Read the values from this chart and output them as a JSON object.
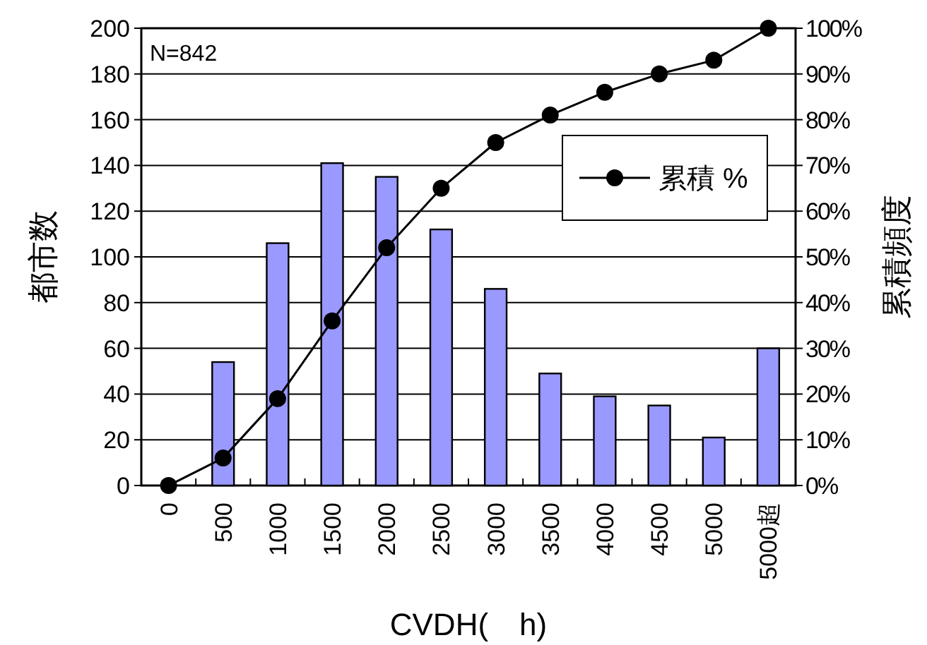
{
  "chart_data": {
    "type": "bar",
    "xlabel": "CVDH(　h)",
    "ylabel": "都市数",
    "y2label": "累積頻度",
    "annotations": [
      "N=842"
    ],
    "categories": [
      "0",
      "500",
      "1000",
      "1500",
      "2000",
      "2500",
      "3000",
      "3500",
      "4000",
      "4500",
      "5000",
      "5000超"
    ],
    "series": [
      {
        "color": "#9999ff",
        "values": [
          0,
          54,
          106,
          141,
          135,
          112,
          86,
          49,
          39,
          35,
          21,
          60
        ]
      },
      {
        "type": "line",
        "name": "累積 %",
        "color": "#000000",
        "axis": "y2",
        "marker": "circle",
        "values": [
          0,
          6,
          19,
          36,
          52,
          65,
          75,
          81,
          86,
          90,
          93,
          100
        ]
      }
    ],
    "ylim": [
      0,
      200
    ],
    "yticks": [
      0,
      20,
      40,
      60,
      80,
      100,
      120,
      140,
      160,
      180,
      200
    ],
    "y2lim": [
      0,
      100
    ],
    "y2ticks": [
      {
        "value": 0,
        "label": "0%"
      },
      {
        "value": 10,
        "label": "10%"
      },
      {
        "value": 20,
        "label": "20%"
      },
      {
        "value": 30,
        "label": "30%"
      },
      {
        "value": 40,
        "label": "40%"
      },
      {
        "value": 50,
        "label": "50%"
      },
      {
        "value": 60,
        "label": "60%"
      },
      {
        "value": 70,
        "label": "70%"
      },
      {
        "value": 80,
        "label": "80%"
      },
      {
        "value": 90,
        "label": "90%"
      },
      {
        "value": 100,
        "label": "100%"
      }
    ],
    "grid": "y",
    "legend": "right"
  }
}
